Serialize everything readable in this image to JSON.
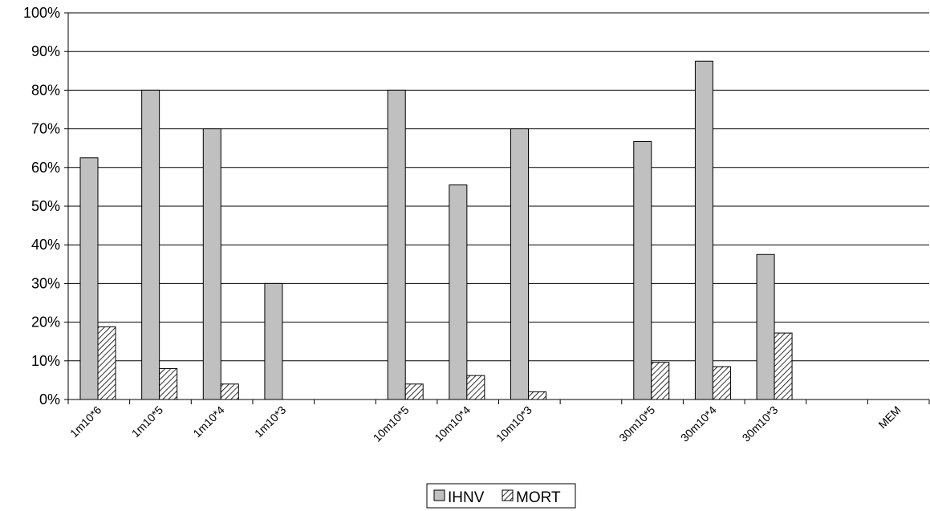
{
  "chart_data": {
    "type": "bar",
    "categories": [
      "1m10*6",
      "1m10*5",
      "1m10*4",
      "1m10*3",
      "",
      "10m10*5",
      "10m10*4",
      "10m10*3",
      "",
      "30m10*5",
      "30m10*4",
      "30m10*3",
      "",
      "MEM"
    ],
    "series": [
      {
        "name": "IHNV",
        "values": [
          62.5,
          80,
          70,
          30,
          0,
          80,
          55.5,
          70,
          0,
          66.7,
          87.5,
          37.5,
          0,
          0
        ]
      },
      {
        "name": "MORT",
        "values": [
          18.8,
          8,
          4,
          0,
          0,
          4,
          6.2,
          2,
          0,
          9.6,
          8.5,
          17.2,
          0,
          0
        ]
      }
    ],
    "y_ticks": [
      "0%",
      "10%",
      "20%",
      "30%",
      "40%",
      "50%",
      "60%",
      "70%",
      "80%",
      "90%",
      "100%"
    ],
    "ylim": [
      0,
      100
    ],
    "title": "",
    "xlabel": "",
    "ylabel": "",
    "grid": true,
    "legend_position": "bottom-center",
    "colors": {
      "IHNV": "#c0c0c0",
      "MORT_pattern": "hatched",
      "grid": "#000000"
    }
  }
}
